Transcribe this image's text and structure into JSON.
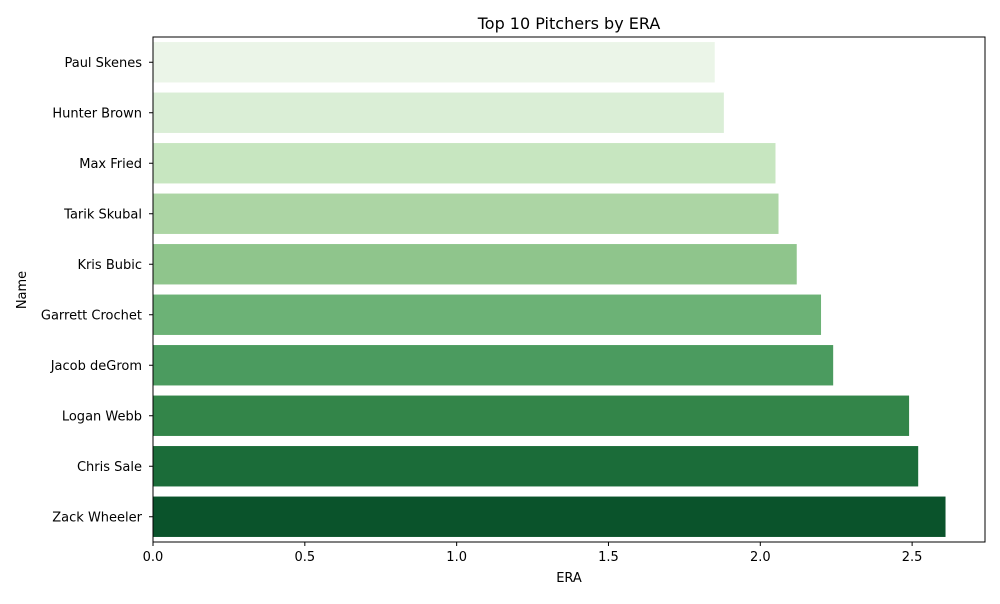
{
  "chart_data": {
    "type": "bar",
    "orientation": "horizontal",
    "title": "Top 10 Pitchers by ERA",
    "xlabel": "ERA",
    "ylabel": "Name",
    "xlim": [
      0,
      2.74
    ],
    "xticks": [
      "0.0",
      "0.5",
      "1.0",
      "1.5",
      "2.0",
      "2.5"
    ],
    "grid": false,
    "categories": [
      "Paul Skenes",
      "Hunter Brown",
      "Max Fried",
      "Tarik Skubal",
      "Kris Bubic",
      "Garrett Crochet",
      "Jacob deGrom",
      "Logan Webb",
      "Chris Sale",
      "Zack Wheeler"
    ],
    "values": [
      1.85,
      1.88,
      2.05,
      2.06,
      2.12,
      2.2,
      2.24,
      2.49,
      2.52,
      2.61
    ],
    "colors": [
      "#ebf5e8",
      "#daeed6",
      "#c7e6c0",
      "#acd5a4",
      "#8fc58c",
      "#6cb276",
      "#4b9b5f",
      "#338549",
      "#1b6c39",
      "#0a532b"
    ]
  }
}
